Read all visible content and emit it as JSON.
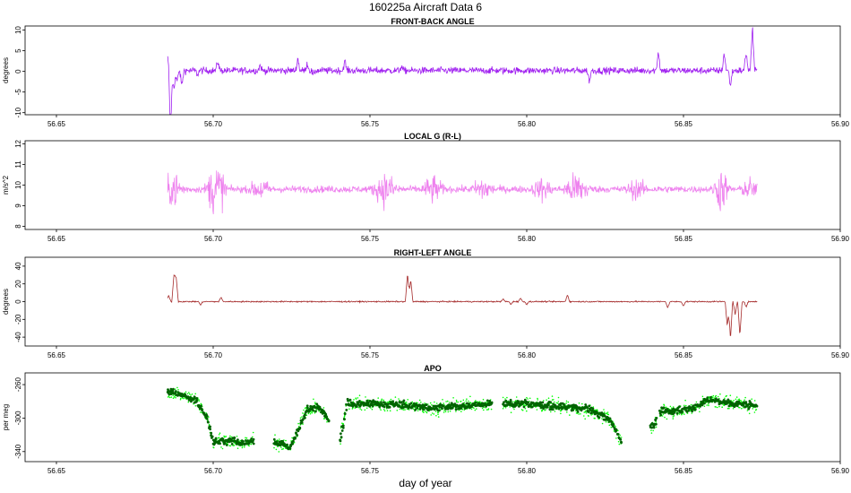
{
  "title": "160225a    Aircraft Data 6",
  "xlabel": "day of year",
  "chart_data": [
    {
      "type": "line",
      "title": "FRONT-BACK ANGLE",
      "ylabel": "degrees",
      "color": "#a020f0",
      "xlim": [
        56.64,
        56.9
      ],
      "ylim": [
        -10.5,
        11
      ],
      "yticks": [
        -10,
        -5,
        0,
        5,
        10
      ],
      "xticks": [
        56.65,
        56.7,
        56.75,
        56.8,
        56.85,
        56.9
      ],
      "xtick_labels": [
        "56.65",
        "56.70",
        "56.75",
        "56.80",
        "56.85",
        "56.90"
      ],
      "x_start": 56.6855,
      "x_end": 56.8735,
      "baseline": 0.2,
      "noise": 0.6,
      "events": [
        [
          56.6858,
          5.5
        ],
        [
          56.6862,
          -10.5
        ],
        [
          56.6866,
          -6
        ],
        [
          56.6875,
          -4
        ],
        [
          56.6885,
          -2.5
        ],
        [
          56.69,
          -3.5
        ],
        [
          56.695,
          -0.8
        ],
        [
          56.7015,
          2.5
        ],
        [
          56.715,
          1.5
        ],
        [
          56.727,
          3.2
        ],
        [
          56.73,
          2.0
        ],
        [
          56.732,
          -1.0
        ],
        [
          56.742,
          2.6
        ],
        [
          56.76,
          1.2
        ],
        [
          56.82,
          -2.5
        ],
        [
          56.842,
          5.0
        ],
        [
          56.863,
          4.5
        ],
        [
          56.865,
          -3.5
        ],
        [
          56.87,
          4.8
        ],
        [
          56.872,
          11.0
        ]
      ]
    },
    {
      "type": "line",
      "title": "LOCAL G (R-L)",
      "ylabel": "m/s^2",
      "color": "#ee82ee",
      "xlim": [
        56.64,
        56.9
      ],
      "ylim": [
        7.85,
        12.15
      ],
      "yticks": [
        8,
        9,
        10,
        11,
        12
      ],
      "xticks": [
        56.65,
        56.7,
        56.75,
        56.8,
        56.85,
        56.9
      ],
      "xtick_labels": [
        "56.65",
        "56.70",
        "56.75",
        "56.80",
        "56.85",
        "56.90"
      ],
      "x_start": 56.6855,
      "x_end": 56.8735,
      "baseline": 9.8,
      "noise": 0.12,
      "bursts": [
        [
          56.6875,
          0.004,
          0.6
        ],
        [
          56.701,
          0.004,
          1.0
        ],
        [
          56.715,
          0.004,
          0.35
        ],
        [
          56.755,
          0.005,
          0.55
        ],
        [
          56.77,
          0.004,
          0.45
        ],
        [
          56.786,
          0.004,
          0.4
        ],
        [
          56.805,
          0.004,
          0.35
        ],
        [
          56.816,
          0.005,
          0.55
        ],
        [
          56.835,
          0.004,
          0.3
        ],
        [
          56.862,
          0.003,
          0.75
        ],
        [
          56.871,
          0.003,
          0.35
        ]
      ]
    },
    {
      "type": "line",
      "title": "RIGHT-LEFT ANGLE",
      "ylabel": "degrees",
      "color": "#a52a2a",
      "xlim": [
        56.64,
        56.9
      ],
      "ylim": [
        -50,
        50
      ],
      "yticks": [
        -40,
        -20,
        0,
        20,
        40
      ],
      "xticks": [
        56.65,
        56.7,
        56.75,
        56.8,
        56.85,
        56.9
      ],
      "xtick_labels": [
        "56.65",
        "56.70",
        "56.75",
        "56.80",
        "56.85",
        "56.90"
      ],
      "x_start": 56.6855,
      "x_end": 56.8735,
      "baseline": 0,
      "noise": 0.5,
      "events": [
        [
          56.6858,
          7
        ],
        [
          56.6875,
          30
        ],
        [
          56.6882,
          28
        ],
        [
          56.696,
          -4
        ],
        [
          56.7025,
          5
        ],
        [
          56.762,
          32
        ],
        [
          56.763,
          25
        ],
        [
          56.7925,
          3
        ],
        [
          56.795,
          -3
        ],
        [
          56.798,
          4
        ],
        [
          56.8,
          -3
        ],
        [
          56.813,
          8
        ],
        [
          56.845,
          -7
        ],
        [
          56.85,
          -5
        ],
        [
          56.864,
          -28
        ],
        [
          56.865,
          -42
        ],
        [
          56.8665,
          -15
        ],
        [
          56.868,
          -38
        ],
        [
          56.87,
          -6
        ]
      ]
    },
    {
      "type": "scatter",
      "title": "APO",
      "ylabel": "per meg",
      "color_points": "#006400",
      "color_raw": "#00ff00",
      "xlim": [
        56.64,
        56.9
      ],
      "ylim": [
        -352,
        -246
      ],
      "yticks": [
        -260,
        -300,
        -340
      ],
      "xticks": [
        56.65,
        56.7,
        56.75,
        56.8,
        56.85,
        56.9
      ],
      "xtick_labels": [
        "56.65",
        "56.70",
        "56.75",
        "56.80",
        "56.85",
        "56.90"
      ],
      "segments": [
        {
          "x": [
            56.6855,
            56.69,
            56.695,
            56.698,
            56.7,
            56.705,
            56.71,
            56.713
          ],
          "y": [
            -268,
            -272,
            -280,
            -300,
            -328,
            -326,
            -330,
            -327
          ]
        },
        {
          "x": [
            56.7195,
            56.723,
            56.7245,
            56.727,
            56.73,
            56.733,
            56.735,
            56.737
          ],
          "y": [
            -328,
            -333,
            -336,
            -315,
            -290,
            -287,
            -292,
            -304
          ]
        },
        {
          "x": [
            56.7405,
            56.7415,
            56.7425
          ],
          "y": [
            -328,
            -305,
            -284
          ]
        },
        {
          "x": [
            56.743,
            56.75,
            56.76,
            56.77,
            56.78,
            56.789
          ],
          "y": [
            -282,
            -283,
            -284,
            -288,
            -285,
            -283
          ]
        },
        {
          "x": [
            56.7925,
            56.8,
            56.81,
            56.82,
            56.826,
            56.829,
            56.8305
          ],
          "y": [
            -283,
            -283,
            -286,
            -290,
            -300,
            -318,
            -332
          ]
        },
        {
          "x": [
            56.8395,
            56.8415
          ],
          "y": [
            -310,
            -305
          ]
        },
        {
          "x": [
            56.8425,
            56.848,
            56.853,
            56.858,
            56.865,
            56.8735
          ],
          "y": [
            -293,
            -291,
            -288,
            -278,
            -282,
            -285
          ]
        }
      ]
    }
  ]
}
